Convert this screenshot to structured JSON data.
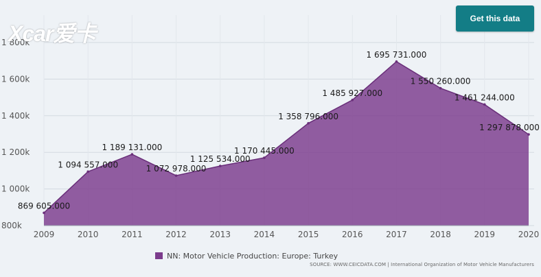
{
  "watermark": "Xcar爱卡",
  "header": {
    "get_data_label": "Get this data"
  },
  "source_text": "SOURCE: WWW.CEICDATA.COM | International Organization of Motor Vehicle Manufacturers",
  "colors": {
    "series_fill": "#7b3b8c",
    "button": "#137d86",
    "background": "#eef2f6"
  },
  "chart_data": {
    "type": "area",
    "title": "",
    "xlabel": "",
    "ylabel": "",
    "x": [
      2009,
      2010,
      2011,
      2012,
      2013,
      2014,
      2015,
      2016,
      2017,
      2018,
      2019,
      2020
    ],
    "xlim": [
      2009,
      2020
    ],
    "ylim": [
      800000,
      1800000
    ],
    "y_ticks": [
      800000,
      1000000,
      1200000,
      1400000,
      1600000,
      1800000
    ],
    "y_tick_labels": [
      "800k",
      "1 000k",
      "1 200k",
      "1 400k",
      "1 600k",
      "1 800k"
    ],
    "x_tick_labels": [
      "2009",
      "2010",
      "2011",
      "2012",
      "2013",
      "2014",
      "2015",
      "2016",
      "2017",
      "2018",
      "2019",
      "2020"
    ],
    "grid": true,
    "legend_position": "bottom",
    "series": [
      {
        "name": "NN: Motor Vehicle Production: Europe: Turkey",
        "values": [
          869605,
          1094557,
          1189131,
          1072978,
          1125534,
          1170445,
          1358796,
          1485927,
          1695731,
          1550260,
          1461244,
          1297878
        ],
        "labels": [
          "869 605.000",
          "1 094 557.000",
          "1 189 131.000",
          "1 072 978.000",
          "1 125 534.000",
          "1 170 445.000",
          "1 358 796.000",
          "1 485 927.000",
          "1 695 731.000",
          "1 550 260.000",
          "1 461 244.000",
          "1 297 878.000"
        ]
      }
    ]
  }
}
